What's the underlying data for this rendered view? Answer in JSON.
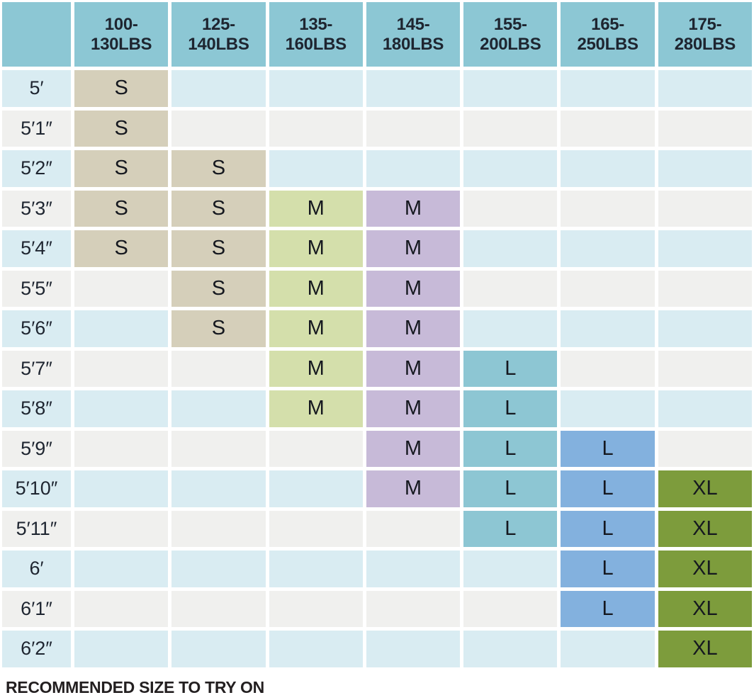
{
  "chart_data": {
    "type": "table",
    "title": "",
    "note": "RECOMMENDED SIZE TO TRY ON",
    "corner_label": "",
    "columns": [
      {
        "label": "100-130LBS",
        "line1": "100-",
        "line2": "130LBS"
      },
      {
        "label": "125-140LBS",
        "line1": "125-",
        "line2": "140LBS"
      },
      {
        "label": "135-160LBS",
        "line1": "135-",
        "line2": "160LBS"
      },
      {
        "label": "145-180LBS",
        "line1": "145-",
        "line2": "180LBS"
      },
      {
        "label": "155-200LBS",
        "line1": "155-",
        "line2": "200LBS"
      },
      {
        "label": "165-250LBS",
        "line1": "165-",
        "line2": "250LBS"
      },
      {
        "label": "175-280LBS",
        "line1": "175-",
        "line2": "280LBS"
      }
    ],
    "rows": [
      {
        "height": "5′",
        "cells": [
          "S",
          "",
          "",
          "",
          "",
          "",
          ""
        ]
      },
      {
        "height": "5′1″",
        "cells": [
          "S",
          "",
          "",
          "",
          "",
          "",
          ""
        ]
      },
      {
        "height": "5′2″",
        "cells": [
          "S",
          "S",
          "",
          "",
          "",
          "",
          ""
        ]
      },
      {
        "height": "5′3″",
        "cells": [
          "S",
          "S",
          "M",
          "M",
          "",
          "",
          ""
        ]
      },
      {
        "height": "5′4″",
        "cells": [
          "S",
          "S",
          "M",
          "M",
          "",
          "",
          ""
        ]
      },
      {
        "height": "5′5″",
        "cells": [
          "",
          "S",
          "M",
          "M",
          "",
          "",
          ""
        ]
      },
      {
        "height": "5′6″",
        "cells": [
          "",
          "S",
          "M",
          "M",
          "",
          "",
          ""
        ]
      },
      {
        "height": "5′7″",
        "cells": [
          "",
          "",
          "M",
          "M",
          "L",
          "",
          ""
        ]
      },
      {
        "height": "5′8″",
        "cells": [
          "",
          "",
          "M",
          "M",
          "L",
          "",
          ""
        ]
      },
      {
        "height": "5′9″",
        "cells": [
          "",
          "",
          "",
          "M",
          "L",
          "L",
          ""
        ]
      },
      {
        "height": "5′10″",
        "cells": [
          "",
          "",
          "",
          "M",
          "L",
          "L",
          "XL"
        ]
      },
      {
        "height": "5′11″",
        "cells": [
          "",
          "",
          "",
          "",
          "L",
          "L",
          "XL"
        ]
      },
      {
        "height": "6′",
        "cells": [
          "",
          "",
          "",
          "",
          "",
          "L",
          "XL"
        ]
      },
      {
        "height": "6′1″",
        "cells": [
          "",
          "",
          "",
          "",
          "",
          "L",
          "XL"
        ]
      },
      {
        "height": "6′2″",
        "cells": [
          "",
          "",
          "",
          "",
          "",
          "",
          "XL"
        ]
      }
    ],
    "colors": {
      "header_bg": "#8cc7d4",
      "row_alt_blue": "#d9ecf2",
      "row_alt_gray": "#f0f0ee",
      "size_S_tan": "#d5cfba",
      "size_M_green": "#d4dfab",
      "size_M_purple": "#c7bad8",
      "size_L_teal": "#8dc6d3",
      "size_L_blue": "#83b1de",
      "size_XL_olive": "#7d9c3c",
      "text": "#1e2530"
    }
  }
}
